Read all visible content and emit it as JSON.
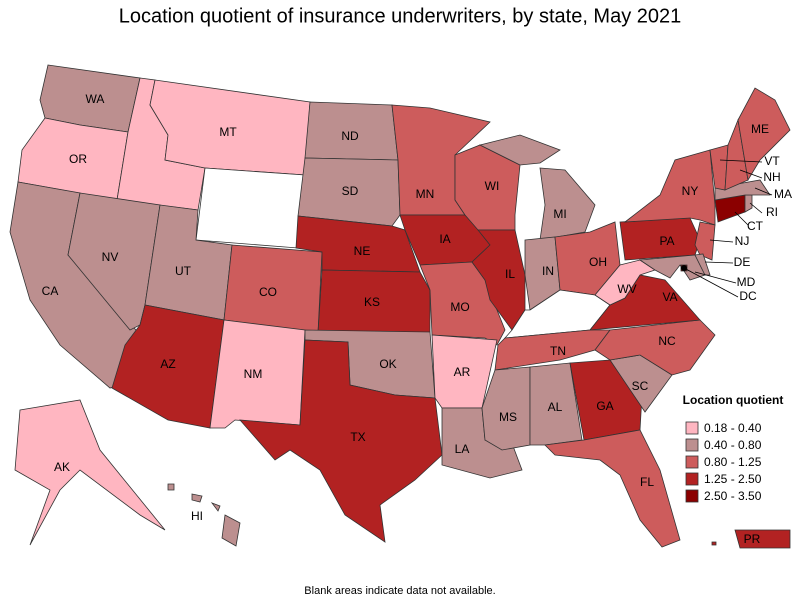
{
  "title": "Location quotient of insurance underwriters, by state, May 2021",
  "legend": {
    "title": "Location quotient",
    "classes": [
      {
        "label": "0.18 - 0.40",
        "color": "#ffb6c1",
        "states": [
          "OR",
          "ID",
          "MT",
          "NM",
          "AR",
          "WV",
          "AK"
        ]
      },
      {
        "label": "0.40 - 0.80",
        "color": "#bc8f8f",
        "states": [
          "WA",
          "NV",
          "CA",
          "UT",
          "ND",
          "SD",
          "OK",
          "MI",
          "IN",
          "MS",
          "AL",
          "LA",
          "SC",
          "HI",
          "MA",
          "RI",
          "DE",
          "MD"
        ]
      },
      {
        "label": "0.80 - 1.25",
        "color": "#cd5c5c",
        "states": [
          "CO",
          "MN",
          "WI",
          "MO",
          "OH",
          "TN",
          "NC",
          "FL",
          "NY",
          "ME",
          "VT",
          "NH",
          "NJ"
        ]
      },
      {
        "label": "1.25 - 2.50",
        "color": "#b22222",
        "states": [
          "AZ",
          "TX",
          "NE",
          "KS",
          "IA",
          "IL",
          "PA",
          "VA",
          "GA",
          "PR"
        ]
      },
      {
        "label": "2.50 - 3.50",
        "color": "#8b0000",
        "states": [
          "CT",
          "DC"
        ]
      }
    ]
  },
  "footnote": "Blank areas indicate data not available."
}
